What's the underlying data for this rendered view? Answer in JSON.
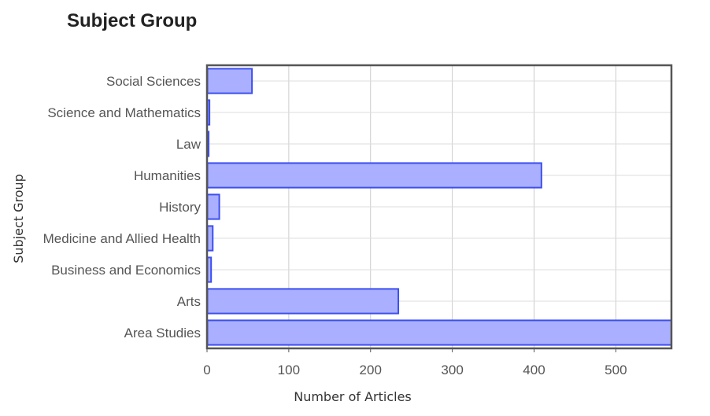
{
  "title": "Subject Group",
  "chart_data": {
    "type": "bar",
    "orientation": "horizontal",
    "title": "Subject Group",
    "xlabel": "Number of Articles",
    "ylabel": "Subject Group",
    "categories": [
      "Social Sciences",
      "Science and Mathematics",
      "Law",
      "Humanities",
      "History",
      "Medicine and Allied Health",
      "Business and Economics",
      "Arts",
      "Area Studies"
    ],
    "values": [
      55,
      3,
      2,
      409,
      15,
      7,
      5,
      234,
      568
    ],
    "xlim": [
      0,
      568
    ],
    "xticks": [
      0,
      100,
      200,
      300,
      400,
      500
    ],
    "grid": true,
    "legend": "none",
    "colors": {
      "bar_fill": "#aab0ff",
      "bar_stroke": "#3c4ff0",
      "grid": "#cccccc",
      "frame": "#555555"
    }
  }
}
